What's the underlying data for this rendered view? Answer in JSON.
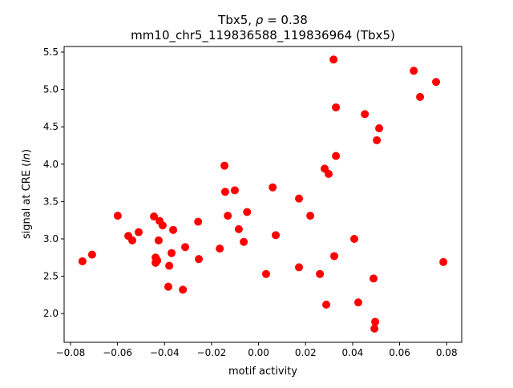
{
  "chart_data": {
    "type": "scatter",
    "title_line1_prefix": "Tbx5, ",
    "title_rho_symbol": "ρ",
    "title_rho_value": " = 0.38",
    "title_line2": "mm10_chr5_119836588_119836964 (Tbx5)",
    "xlabel": "motif activity",
    "ylabel_prefix": "signal at CRE (",
    "ylabel_italic": "ln",
    "ylabel_suffix": ")",
    "xlim": [
      -0.0827,
      0.0864
    ],
    "ylim": [
      1.616,
      5.575
    ],
    "xticks": [
      -0.08,
      -0.06,
      -0.04,
      -0.02,
      0.0,
      0.02,
      0.04,
      0.06,
      0.08
    ],
    "xtick_labels": [
      "−0.08",
      "−0.06",
      "−0.04",
      "−0.02",
      "0.00",
      "0.02",
      "0.04",
      "0.06",
      "0.08"
    ],
    "yticks": [
      2.0,
      2.5,
      3.0,
      3.5,
      4.0,
      4.5,
      5.0,
      5.5
    ],
    "ytick_labels": [
      "2.0",
      "2.5",
      "3.0",
      "3.5",
      "4.0",
      "4.5",
      "5.0",
      "5.5"
    ],
    "grid": false,
    "marker_color": "#ff0000",
    "points": [
      [
        -0.0749,
        2.7
      ],
      [
        -0.0708,
        2.79
      ],
      [
        -0.0599,
        3.31
      ],
      [
        -0.0554,
        3.04
      ],
      [
        -0.0537,
        2.98
      ],
      [
        -0.051,
        3.09
      ],
      [
        -0.0445,
        3.3
      ],
      [
        -0.0438,
        2.75
      ],
      [
        -0.0438,
        2.68
      ],
      [
        -0.0431,
        2.71
      ],
      [
        -0.0425,
        2.98
      ],
      [
        -0.0421,
        3.24
      ],
      [
        -0.0408,
        3.18
      ],
      [
        -0.0384,
        2.36
      ],
      [
        -0.038,
        2.64
      ],
      [
        -0.037,
        2.81
      ],
      [
        -0.0363,
        3.12
      ],
      [
        -0.0322,
        2.32
      ],
      [
        -0.0312,
        2.89
      ],
      [
        -0.0257,
        3.23
      ],
      [
        -0.0254,
        2.73
      ],
      [
        -0.0165,
        2.87
      ],
      [
        -0.0145,
        3.98
      ],
      [
        -0.0142,
        3.63
      ],
      [
        -0.0131,
        3.31
      ],
      [
        -0.0101,
        3.65
      ],
      [
        -0.0084,
        3.13
      ],
      [
        -0.0063,
        2.96
      ],
      [
        -0.0049,
        3.36
      ],
      [
        0.0032,
        2.53
      ],
      [
        0.006,
        3.69
      ],
      [
        0.0073,
        3.05
      ],
      [
        0.0172,
        3.54
      ],
      [
        0.0172,
        2.62
      ],
      [
        0.022,
        3.31
      ],
      [
        0.0261,
        2.53
      ],
      [
        0.0281,
        3.94
      ],
      [
        0.0288,
        2.12
      ],
      [
        0.0298,
        3.87
      ],
      [
        0.0319,
        5.4
      ],
      [
        0.0322,
        2.77
      ],
      [
        0.0329,
        4.76
      ],
      [
        0.0329,
        4.11
      ],
      [
        0.0407,
        3.0
      ],
      [
        0.0424,
        2.15
      ],
      [
        0.0452,
        4.67
      ],
      [
        0.0489,
        2.47
      ],
      [
        0.0496,
        1.89
      ],
      [
        0.0493,
        1.8
      ],
      [
        0.0503,
        4.32
      ],
      [
        0.0513,
        4.48
      ],
      [
        0.066,
        5.25
      ],
      [
        0.0687,
        4.9
      ],
      [
        0.0755,
        5.1
      ],
      [
        0.0786,
        2.69
      ]
    ]
  }
}
